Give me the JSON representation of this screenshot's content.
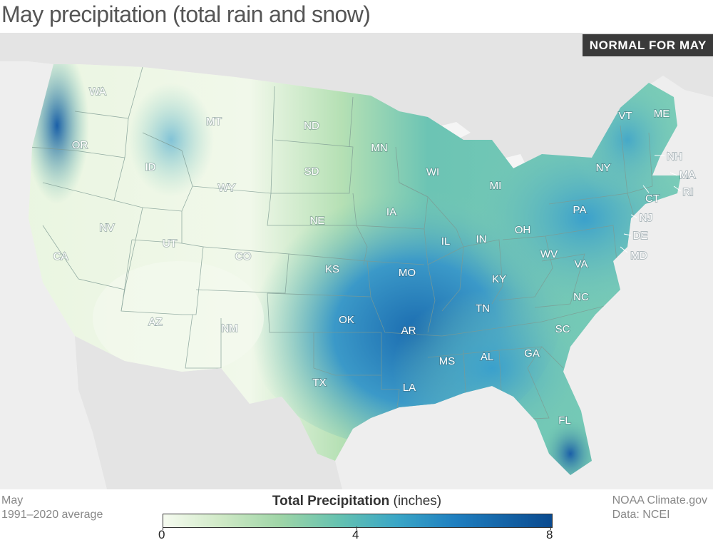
{
  "title": "May precipitation (total rain and snow)",
  "badge": "NORMAL FOR MAY",
  "footer_left": {
    "line1": "May",
    "line2": "1991–2020 average"
  },
  "footer_right": {
    "line1": "NOAA Climate.gov",
    "line2": "Data: NCEI"
  },
  "legend": {
    "title_bold": "Total Precipitation",
    "title_unit": " (inches)",
    "ticks": [
      "0",
      "4",
      "8"
    ],
    "range": [
      0,
      8
    ]
  },
  "colors": {
    "low": "#f6fbf0",
    "mid": "#66c2b0",
    "high": "#0a4a8f",
    "land_outside": "#e6e6e6",
    "water": "#eeeeee"
  },
  "states": [
    "WA",
    "OR",
    "CA",
    "ID",
    "NV",
    "MT",
    "WY",
    "UT",
    "AZ",
    "CO",
    "NM",
    "ND",
    "SD",
    "NE",
    "KS",
    "OK",
    "TX",
    "MN",
    "IA",
    "MO",
    "AR",
    "LA",
    "WI",
    "IL",
    "MS",
    "MI",
    "IN",
    "KY",
    "TN",
    "AL",
    "OH",
    "GA",
    "FL",
    "SC",
    "NC",
    "WV",
    "VA",
    "PA",
    "NY",
    "VT",
    "ME",
    "NH",
    "MA",
    "CT",
    "RI",
    "NJ",
    "DE",
    "MD"
  ]
}
